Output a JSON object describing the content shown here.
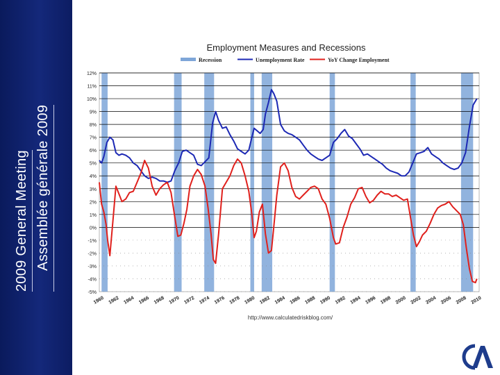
{
  "slide": {
    "sidebar_line1": "2009 General Meeting",
    "sidebar_line2": "Assemblée générale 2009",
    "background_color": "#14287a",
    "logo": "cia-logo-icon"
  },
  "chart_data": {
    "type": "line",
    "title": "Employment Measures and Recessions",
    "source": "http://www.calculatedriskblog.com/",
    "legend": [
      {
        "name": "Recession",
        "color": "#7ea6d8",
        "kind": "band"
      },
      {
        "name": "Unemployment Rate",
        "color": "#1c28b4",
        "kind": "line"
      },
      {
        "name": "YoY Change Employment",
        "color": "#e0201c",
        "kind": "line"
      }
    ],
    "xlim": [
      1960,
      2010.3
    ],
    "ylim": [
      -5,
      12
    ],
    "y_ticks": [
      12,
      11,
      10,
      9,
      8,
      7,
      6,
      5,
      4,
      3,
      2,
      1,
      0,
      -1,
      -2,
      -3,
      -4,
      -5
    ],
    "y_tick_labels": [
      "12%",
      "11%",
      "10%",
      "9%",
      "8%",
      "7%",
      "6%",
      "5%",
      "4%",
      "3%",
      "2%",
      "1%",
      "0%",
      "-1%",
      "-2%",
      "-3%",
      "-4%",
      "-5%"
    ],
    "x_ticks": [
      1960,
      1962,
      1964,
      1966,
      1968,
      1970,
      1972,
      1974,
      1976,
      1978,
      1980,
      1982,
      1984,
      1986,
      1988,
      1990,
      1992,
      1994,
      1996,
      1998,
      2000,
      2002,
      2004,
      2006,
      2008,
      2010
    ],
    "x_tick_labels": [
      "1960",
      "1962",
      "1964",
      "1966",
      "1968",
      "1970",
      "1972",
      "1974",
      "1976",
      "1978",
      "1980",
      "1982",
      "1984",
      "1986",
      "1988",
      "1990",
      "1992",
      "1994",
      "1996",
      "1998",
      "2000",
      "2002",
      "2004",
      "2006",
      "2008",
      "2010"
    ],
    "recessions": [
      [
        1960.3,
        1961.1
      ],
      [
        1969.9,
        1970.9
      ],
      [
        1973.9,
        1975.2
      ],
      [
        1980.0,
        1980.5
      ],
      [
        1981.5,
        1982.9
      ],
      [
        1990.5,
        1991.2
      ],
      [
        2001.2,
        2001.9
      ],
      [
        2007.9,
        2009.5
      ]
    ],
    "series": [
      {
        "name": "Unemployment Rate",
        "color": "#1c28b4",
        "x": [
          1960.0,
          1960.3,
          1960.6,
          1961.0,
          1961.4,
          1961.8,
          1962.2,
          1962.6,
          1963.0,
          1963.5,
          1964.0,
          1964.5,
          1965.0,
          1965.5,
          1966.0,
          1966.5,
          1967.0,
          1967.5,
          1968.0,
          1968.5,
          1969.0,
          1969.5,
          1970.0,
          1970.5,
          1971.0,
          1971.5,
          1972.0,
          1972.5,
          1973.0,
          1973.5,
          1974.0,
          1974.5,
          1975.0,
          1975.4,
          1975.8,
          1976.3,
          1976.8,
          1977.3,
          1977.8,
          1978.3,
          1978.8,
          1979.3,
          1979.8,
          1980.2,
          1980.5,
          1980.9,
          1981.3,
          1981.7,
          1982.0,
          1982.4,
          1982.8,
          1983.1,
          1983.5,
          1984.0,
          1984.5,
          1985.0,
          1985.5,
          1986.0,
          1986.5,
          1987.0,
          1987.5,
          1988.0,
          1988.5,
          1989.0,
          1989.5,
          1990.0,
          1990.5,
          1991.0,
          1991.5,
          1992.0,
          1992.5,
          1993.0,
          1993.5,
          1994.0,
          1994.5,
          1995.0,
          1995.5,
          1996.0,
          1996.5,
          1997.0,
          1997.5,
          1998.0,
          1998.5,
          1999.0,
          1999.5,
          2000.0,
          2000.5,
          2001.0,
          2001.5,
          2002.0,
          2002.5,
          2003.0,
          2003.5,
          2004.0,
          2004.5,
          2005.0,
          2005.5,
          2006.0,
          2006.5,
          2007.0,
          2007.5,
          2008.0,
          2008.5,
          2009.0,
          2009.5,
          2010.0
        ],
        "values": [
          5.2,
          5.0,
          5.5,
          6.6,
          7.0,
          6.8,
          5.8,
          5.6,
          5.7,
          5.6,
          5.4,
          5.0,
          4.8,
          4.4,
          4.0,
          3.8,
          3.9,
          3.8,
          3.6,
          3.6,
          3.5,
          3.6,
          4.4,
          5.0,
          5.9,
          6.0,
          5.8,
          5.6,
          4.9,
          4.8,
          5.1,
          5.4,
          8.1,
          9.0,
          8.3,
          7.7,
          7.8,
          7.2,
          6.7,
          6.1,
          5.9,
          5.7,
          6.0,
          7.0,
          7.7,
          7.5,
          7.3,
          7.6,
          8.8,
          9.7,
          10.7,
          10.4,
          9.8,
          8.0,
          7.5,
          7.3,
          7.2,
          7.0,
          6.8,
          6.4,
          6.0,
          5.7,
          5.5,
          5.3,
          5.2,
          5.4,
          5.6,
          6.6,
          6.9,
          7.3,
          7.6,
          7.1,
          6.9,
          6.5,
          6.1,
          5.6,
          5.7,
          5.5,
          5.3,
          5.1,
          4.9,
          4.6,
          4.4,
          4.3,
          4.2,
          4.0,
          4.0,
          4.3,
          5.0,
          5.7,
          5.8,
          5.9,
          6.2,
          5.7,
          5.5,
          5.3,
          5.0,
          4.8,
          4.6,
          4.5,
          4.6,
          5.0,
          5.8,
          7.8,
          9.5,
          10.0
        ]
      },
      {
        "name": "YoY Change Employment",
        "color": "#e0201c",
        "x": [
          1960.0,
          1960.3,
          1960.6,
          1960.9,
          1961.1,
          1961.4,
          1961.8,
          1962.2,
          1962.6,
          1963.0,
          1963.5,
          1964.0,
          1964.5,
          1965.0,
          1965.5,
          1966.0,
          1966.5,
          1967.0,
          1967.5,
          1968.0,
          1968.5,
          1969.0,
          1969.5,
          1970.0,
          1970.4,
          1970.8,
          1971.2,
          1971.6,
          1972.0,
          1972.5,
          1973.0,
          1973.5,
          1974.0,
          1974.4,
          1974.8,
          1975.1,
          1975.4,
          1975.8,
          1976.3,
          1976.8,
          1977.3,
          1977.8,
          1978.3,
          1978.8,
          1979.3,
          1979.8,
          1980.2,
          1980.5,
          1980.8,
          1981.2,
          1981.6,
          1982.0,
          1982.4,
          1982.8,
          1983.1,
          1983.5,
          1984.0,
          1984.5,
          1985.0,
          1985.5,
          1986.0,
          1986.5,
          1987.0,
          1987.5,
          1988.0,
          1988.5,
          1989.0,
          1989.5,
          1990.0,
          1990.5,
          1991.0,
          1991.3,
          1991.8,
          1992.3,
          1992.8,
          1993.3,
          1993.8,
          1994.3,
          1994.8,
          1995.3,
          1995.8,
          1996.3,
          1996.8,
          1997.3,
          1997.8,
          1998.3,
          1998.8,
          1999.3,
          1999.8,
          2000.3,
          2000.8,
          2001.2,
          2001.6,
          2002.0,
          2002.4,
          2002.8,
          2003.3,
          2003.8,
          2004.3,
          2004.8,
          2005.3,
          2005.8,
          2006.3,
          2006.8,
          2007.3,
          2007.8,
          2008.2,
          2008.6,
          2009.0,
          2009.4,
          2009.8,
          2010.0
        ],
        "values": [
          3.5,
          1.8,
          1.2,
          0.2,
          -1.0,
          -2.2,
          0.5,
          3.2,
          2.6,
          2.0,
          2.2,
          2.7,
          2.8,
          3.5,
          4.2,
          5.2,
          4.6,
          3.2,
          2.5,
          3.0,
          3.3,
          3.5,
          2.7,
          0.8,
          -0.7,
          -0.6,
          0.3,
          1.4,
          3.2,
          4.0,
          4.5,
          4.1,
          3.2,
          1.5,
          -0.5,
          -2.5,
          -2.8,
          -0.5,
          3.0,
          3.5,
          4.0,
          4.8,
          5.3,
          5.0,
          4.0,
          2.8,
          1.0,
          -0.8,
          -0.3,
          1.2,
          1.8,
          -0.5,
          -2.0,
          -1.8,
          0.0,
          2.5,
          4.7,
          5.0,
          4.4,
          3.1,
          2.4,
          2.2,
          2.5,
          2.8,
          3.1,
          3.2,
          3.0,
          2.2,
          1.8,
          0.7,
          -0.8,
          -1.3,
          -1.2,
          0.0,
          0.8,
          1.8,
          2.3,
          3.0,
          3.1,
          2.4,
          1.9,
          2.1,
          2.5,
          2.8,
          2.6,
          2.6,
          2.4,
          2.5,
          2.3,
          2.1,
          2.2,
          0.8,
          -0.6,
          -1.5,
          -1.1,
          -0.6,
          -0.3,
          0.3,
          1.0,
          1.5,
          1.7,
          1.8,
          2.0,
          1.6,
          1.3,
          1.0,
          0.2,
          -1.6,
          -3.2,
          -4.2,
          -4.3,
          -4.0
        ]
      }
    ]
  }
}
